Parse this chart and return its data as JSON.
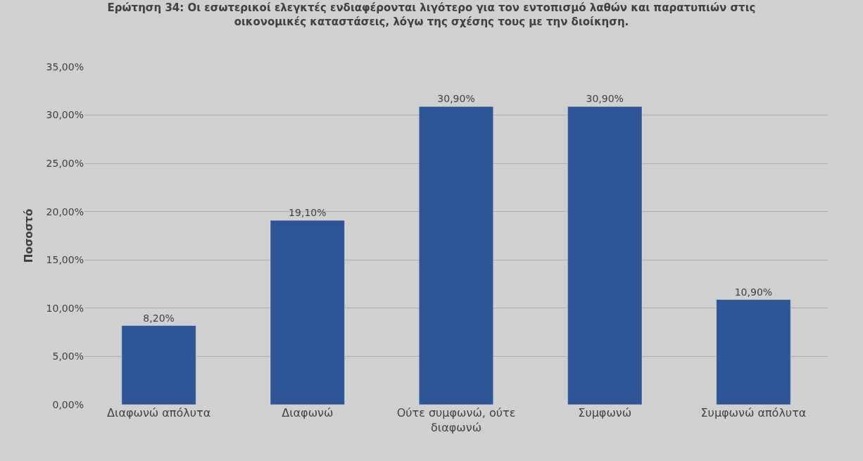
{
  "chart_data": {
    "type": "bar",
    "title": "Ερώτηση 34: Οι εσωτερικοί ελεγκτές ενδιαφέρονται λιγότερο για τον εντοπισμό λαθών και παρατυπιών στις\nοικονομικές καταστάσεις, λόγω της σχέσης τους με την διοίκηση.",
    "ylabel": "Ποσοστό",
    "categories": [
      "Διαφωνώ απόλυτα",
      "Διαφωνώ",
      "Ούτε συμφωνώ, ούτε διαφωνώ",
      "Συμφωνώ",
      "Συμφωνώ απόλυτα"
    ],
    "values": [
      8.2,
      19.1,
      30.9,
      30.9,
      10.9
    ],
    "value_labels": [
      "8,20%",
      "19,10%",
      "30,90%",
      "30,90%",
      "10,90%"
    ],
    "color": "#2f5597",
    "ylim": [
      0,
      35
    ],
    "yticks": [
      {
        "value": 0,
        "label": "0,00%"
      },
      {
        "value": 5,
        "label": "5,00%"
      },
      {
        "value": 10,
        "label": "10,00%"
      },
      {
        "value": 15,
        "label": "15,00%"
      },
      {
        "value": 20,
        "label": "20,00%"
      },
      {
        "value": 25,
        "label": "25,00%"
      },
      {
        "value": 30,
        "label": "30,00%"
      },
      {
        "value": 35,
        "label": "35,00%"
      }
    ],
    "grid": "y",
    "legend": false
  }
}
